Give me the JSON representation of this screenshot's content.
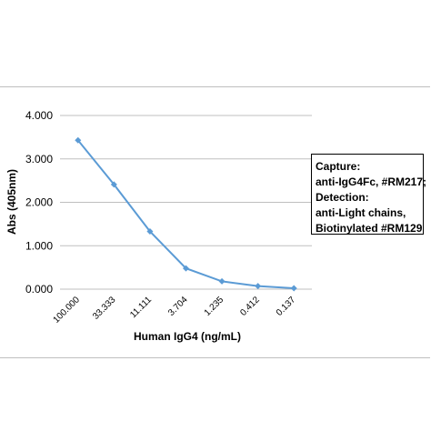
{
  "chart_data": {
    "type": "line",
    "x": [
      "100.000",
      "33.333",
      "11.111",
      "3.704",
      "1.235",
      "0.412",
      "0.137"
    ],
    "series": [
      {
        "values": [
          3.43,
          2.41,
          1.33,
          0.48,
          0.18,
          0.07,
          0.02
        ],
        "color": "#5b9bd5",
        "marker": "diamond"
      }
    ],
    "xlabel": "Human IgG4 (ng/mL)",
    "ylabel": "Abs (405nm)",
    "ylim": [
      0,
      4
    ],
    "yticks": [
      "0.000",
      "1.000",
      "2.000",
      "3.000",
      "4.000"
    ],
    "grid": "horizontal",
    "annotation": [
      "Capture:",
      "anti-IgG4Fc, #RM217;",
      "Detection:",
      "anti-Light chains,",
      "Biotinylated #RM129"
    ]
  }
}
